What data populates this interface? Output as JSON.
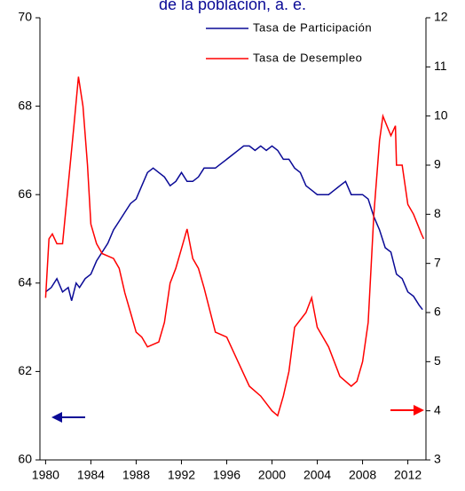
{
  "chart_data": {
    "type": "line",
    "title": "de la población, a. e.",
    "xlim": [
      1979.5,
      2013.6
    ],
    "xticks": [
      1980,
      1984,
      1988,
      1992,
      1996,
      2000,
      2004,
      2008,
      2012
    ],
    "ylim": [
      60,
      70
    ],
    "yticks": [
      60,
      62,
      64,
      66,
      68,
      70
    ],
    "y2lim": [
      3,
      12
    ],
    "y2ticks": [
      3,
      4,
      5,
      6,
      7,
      8,
      9,
      10,
      11,
      12
    ],
    "legend": "top-right",
    "series": [
      {
        "name": "Tasa de Participación",
        "color": "#0a0a96",
        "x": [
          1980,
          1980.5,
          1981,
          1981.5,
          1982,
          1982.3,
          1982.7,
          1983,
          1983.5,
          1984,
          1984.5,
          1985,
          1985.5,
          1986,
          1986.5,
          1987,
          1987.5,
          1988,
          1988.5,
          1989,
          1989.5,
          1990,
          1990.5,
          1991,
          1991.5,
          1992,
          1992.5,
          1993,
          1993.5,
          1994,
          1994.5,
          1995,
          1995.5,
          1996,
          1996.5,
          1997,
          1997.5,
          1998,
          1998.5,
          1999,
          1999.5,
          2000,
          2000.5,
          2001,
          2001.5,
          2002,
          2002.5,
          2003,
          2003.5,
          2004,
          2004.5,
          2005,
          2005.5,
          2006,
          2006.5,
          2007,
          2007.5,
          2008,
          2008.5,
          2009,
          2009.5,
          2010,
          2010.5,
          2011,
          2011.5,
          2012,
          2012.5,
          2013,
          2013.3
        ],
        "values": [
          63.8,
          63.9,
          64.1,
          63.8,
          63.9,
          63.6,
          64.0,
          63.9,
          64.1,
          64.2,
          64.5,
          64.7,
          64.9,
          65.2,
          65.4,
          65.6,
          65.8,
          65.9,
          66.2,
          66.5,
          66.6,
          66.5,
          66.4,
          66.2,
          66.3,
          66.5,
          66.3,
          66.3,
          66.4,
          66.6,
          66.6,
          66.6,
          66.7,
          66.8,
          66.9,
          67.0,
          67.1,
          67.1,
          67.0,
          67.1,
          67.0,
          67.1,
          67.0,
          66.8,
          66.8,
          66.6,
          66.5,
          66.2,
          66.1,
          66.0,
          66.0,
          66.0,
          66.1,
          66.2,
          66.3,
          66.0,
          66.0,
          66.0,
          65.9,
          65.5,
          65.2,
          64.8,
          64.7,
          64.2,
          64.1,
          63.8,
          63.7,
          63.5,
          63.4
        ]
      },
      {
        "name": "Tasa de Desempleo",
        "color": "#ff0000",
        "axis": "y2",
        "x": [
          1980,
          1980.3,
          1980.6,
          1981,
          1981.5,
          1982,
          1982.5,
          1982.9,
          1983.3,
          1983.7,
          1984,
          1984.5,
          1985,
          1986,
          1986.5,
          1987,
          1987.5,
          1988,
          1988.5,
          1989,
          1990,
          1990.5,
          1991,
          1991.5,
          1992,
          1992.5,
          1993,
          1993.5,
          1994,
          1995,
          1996,
          1997,
          1998,
          1999,
          2000,
          2000.5,
          2001,
          2001.5,
          2002,
          2003,
          2003.5,
          2004,
          2005,
          2006,
          2007,
          2007.5,
          2008,
          2008.5,
          2009,
          2009.5,
          2009.8,
          2010.5,
          2010.9,
          2011,
          2011.5,
          2012,
          2012.5,
          2013.2,
          2013.4
        ],
        "values": [
          6.3,
          7.5,
          7.6,
          7.4,
          7.4,
          8.6,
          9.8,
          10.8,
          10.2,
          9.0,
          7.8,
          7.4,
          7.2,
          7.1,
          6.9,
          6.4,
          6.0,
          5.6,
          5.5,
          5.3,
          5.4,
          5.8,
          6.6,
          6.9,
          7.3,
          7.7,
          7.1,
          6.9,
          6.5,
          5.6,
          5.5,
          5.0,
          4.5,
          4.3,
          4.0,
          3.9,
          4.3,
          4.8,
          5.7,
          6.0,
          6.3,
          5.7,
          5.3,
          4.7,
          4.5,
          4.6,
          5.0,
          5.8,
          8.0,
          9.5,
          10.0,
          9.6,
          9.8,
          9.0,
          9.0,
          8.2,
          8.0,
          7.6,
          7.5
        ]
      }
    ]
  }
}
